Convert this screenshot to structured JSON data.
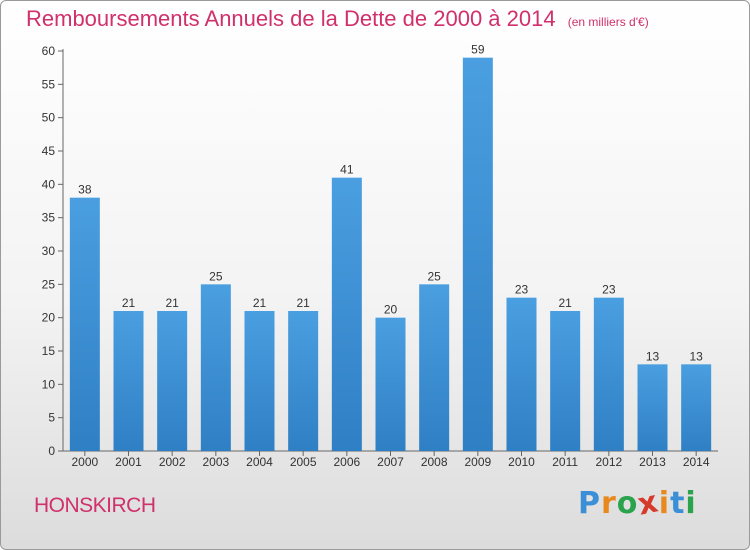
{
  "title": "Remboursements Annuels de la Dette de 2000 à 2014",
  "unit": "(en milliers d'€)",
  "commune": "HONSKIRCH",
  "logo": {
    "letters": [
      "P",
      "r",
      "o",
      "x",
      "i",
      "t",
      "i"
    ],
    "colors": [
      "#3a8fd6",
      "#e8891e",
      "#2ba24c",
      "#d53a2a",
      "#e8891e",
      "#3a8fd6",
      "#2ba24c"
    ]
  },
  "colors": {
    "bar": "#4a9fe0",
    "bar_dark": "#2f7fc4",
    "title": "#d0306b"
  },
  "chart_data": {
    "type": "bar",
    "categories": [
      "2000",
      "2001",
      "2002",
      "2003",
      "2004",
      "2005",
      "2006",
      "2007",
      "2008",
      "2009",
      "2010",
      "2011",
      "2012",
      "2013",
      "2014"
    ],
    "values": [
      38,
      21,
      21,
      25,
      21,
      21,
      41,
      20,
      25,
      59,
      23,
      21,
      23,
      13,
      13
    ],
    "ylim": [
      0,
      60
    ],
    "yticks": [
      0,
      5,
      10,
      15,
      20,
      25,
      30,
      35,
      40,
      45,
      50,
      55,
      60
    ],
    "grid": false,
    "xlabel": "",
    "ylabel": ""
  }
}
